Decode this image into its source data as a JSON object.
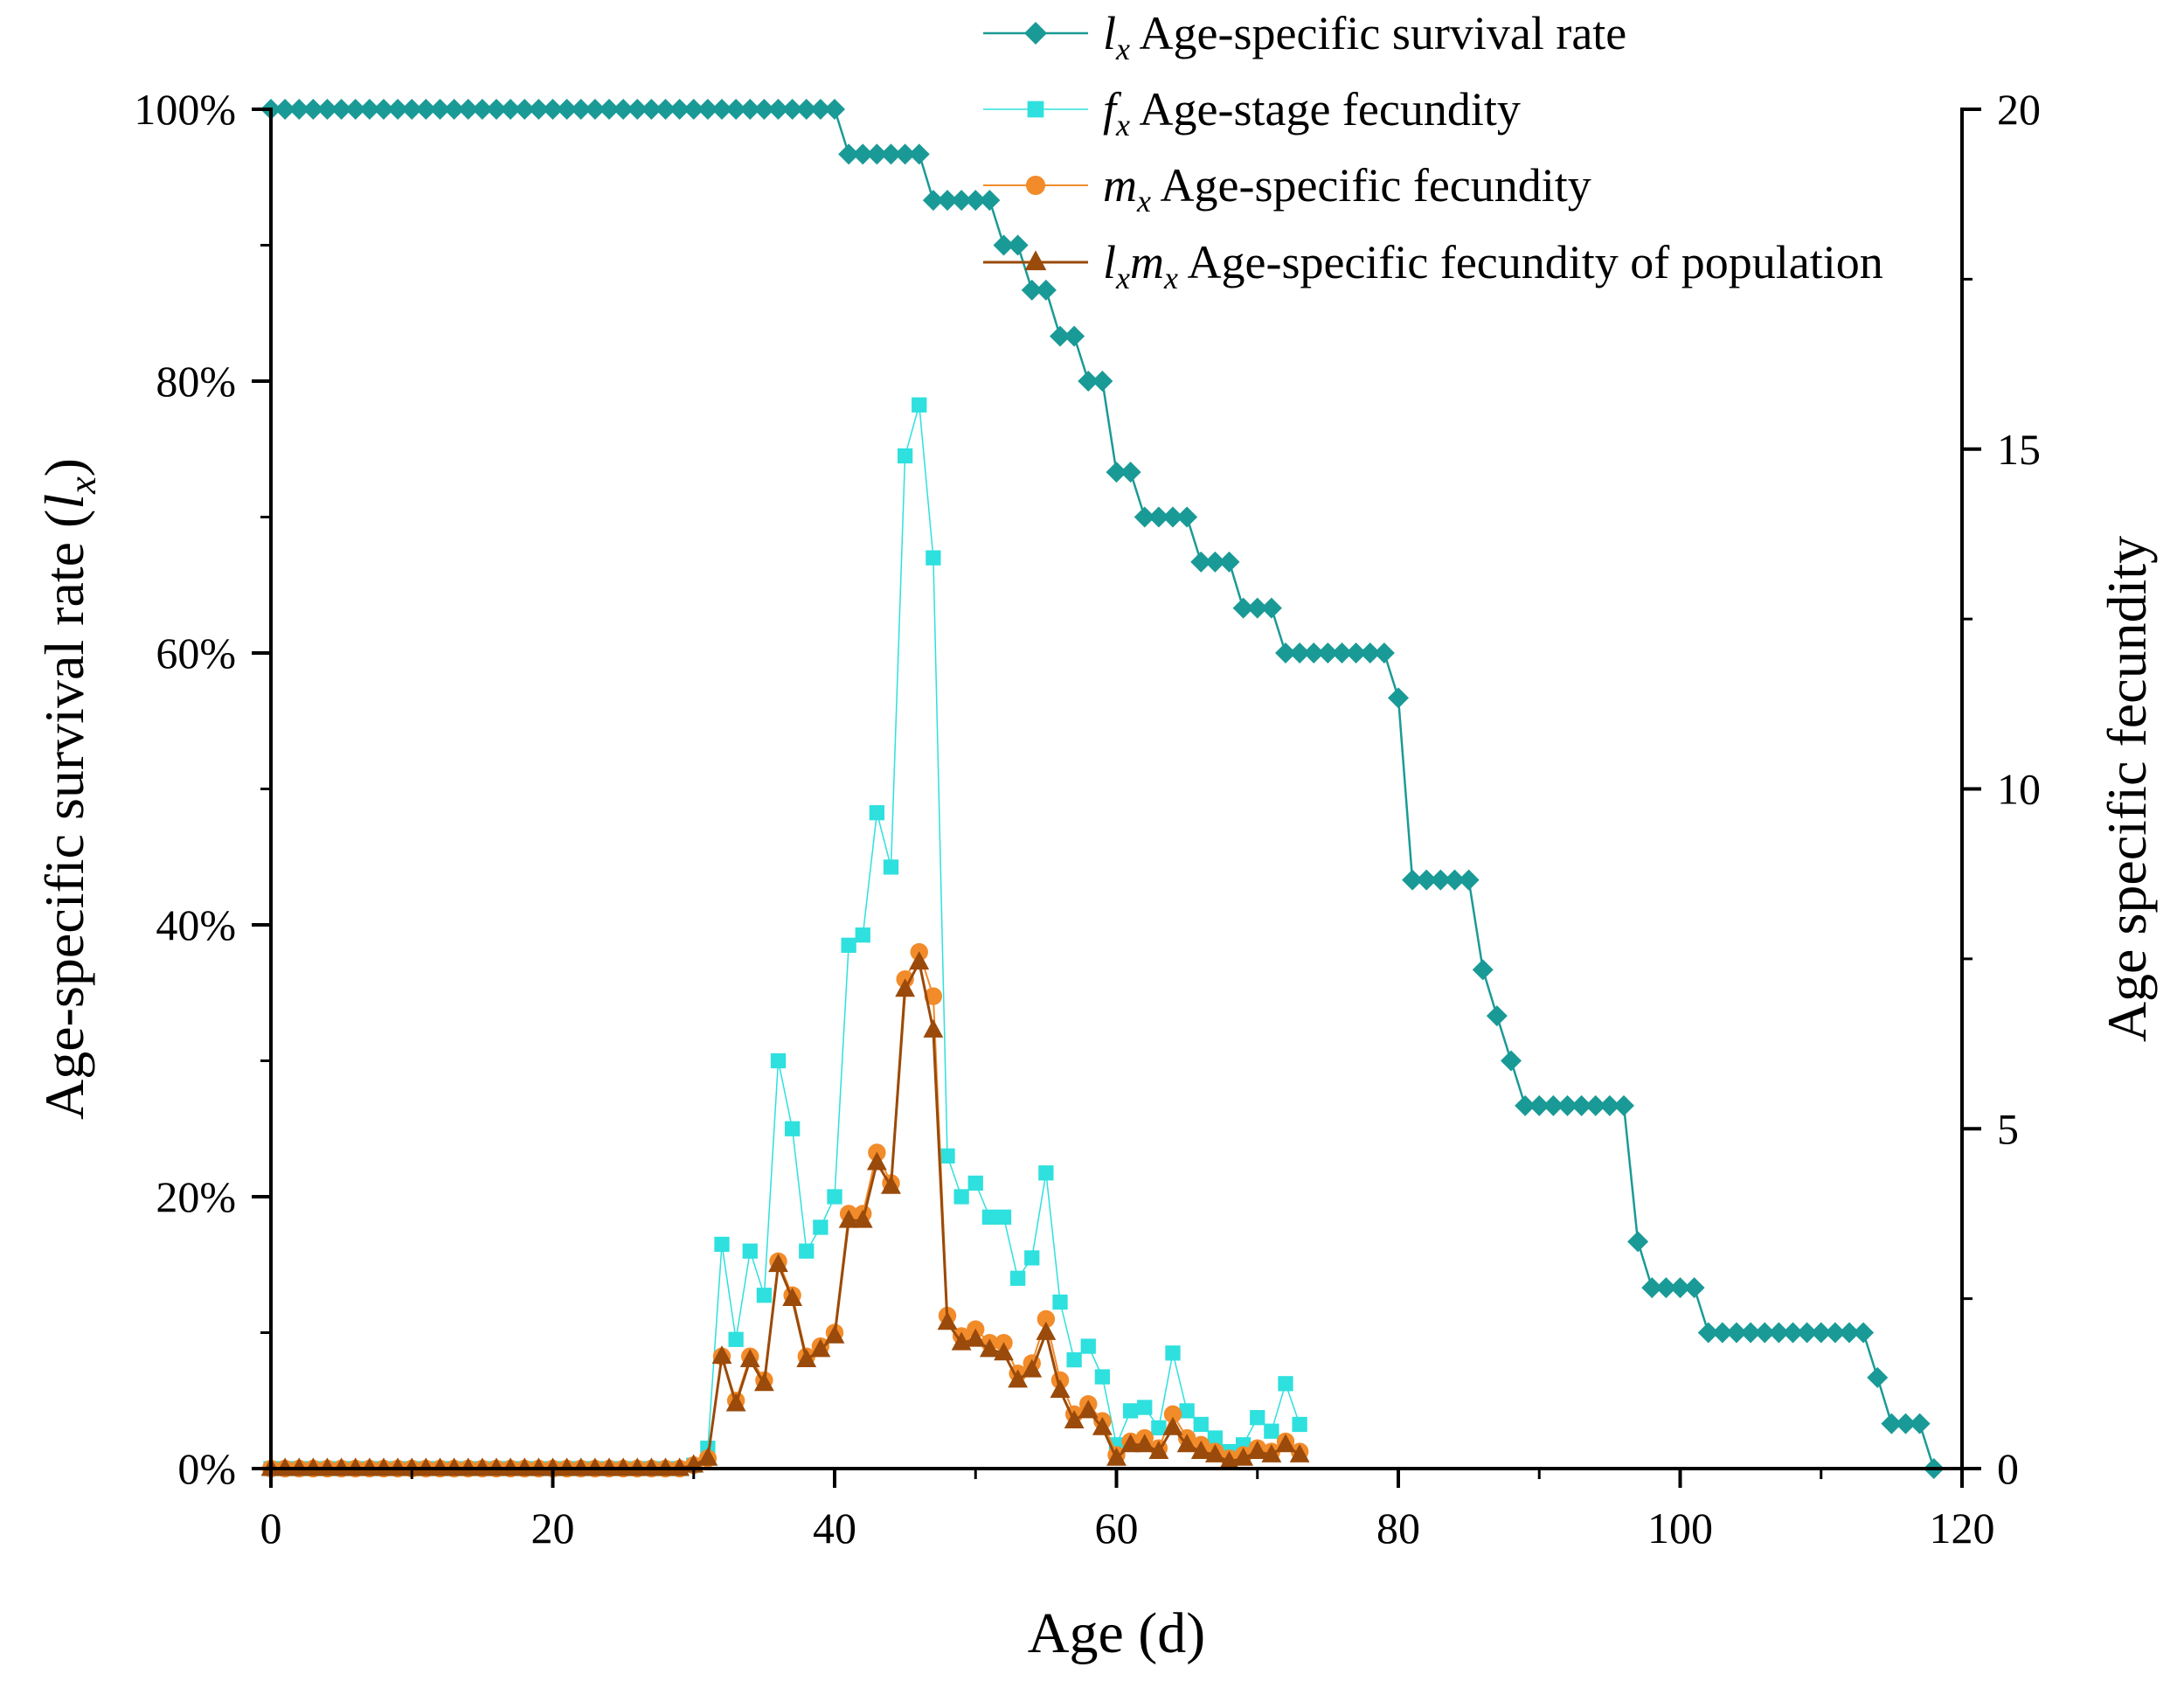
{
  "chart_data": {
    "type": "line",
    "xlabel": "Age (d)",
    "ylabel_left": {
      "prefix": "Age-specific survival rate (",
      "symbol": "l",
      "sub": "x",
      "suffix": ")"
    },
    "ylabel_right": "Age specific fecundity",
    "xlim": [
      0,
      120
    ],
    "ylim_left": [
      0,
      100
    ],
    "ylim_right": [
      0,
      20
    ],
    "x_ticks": [
      "0",
      "20",
      "40",
      "60",
      "80",
      "100",
      "120"
    ],
    "y_left_ticks": [
      "0%",
      "20%",
      "40%",
      "60%",
      "80%",
      "100%"
    ],
    "y_right_ticks": [
      "0",
      "5",
      "10",
      "15",
      "20"
    ],
    "legend_position": "top-right",
    "series": [
      {
        "key": "lx",
        "axis": "left",
        "symbol": "l",
        "sub": "x",
        "name": "Age-specific survival rate",
        "marker": "diamond",
        "color": "#1a9a96",
        "values": [
          100,
          100,
          100,
          100,
          100,
          100,
          100,
          100,
          100,
          100,
          100,
          100,
          100,
          100,
          100,
          100,
          100,
          100,
          100,
          100,
          100,
          100,
          100,
          100,
          100,
          100,
          100,
          100,
          100,
          100,
          100,
          100,
          100,
          100,
          100,
          100,
          100,
          100,
          100,
          100,
          100,
          96.7,
          96.7,
          96.7,
          96.7,
          96.7,
          96.7,
          93.3,
          93.3,
          93.3,
          93.3,
          93.3,
          90,
          90,
          86.7,
          86.7,
          83.3,
          83.3,
          80,
          80,
          73.3,
          73.3,
          70,
          70,
          70,
          70,
          66.7,
          66.7,
          66.7,
          63.3,
          63.3,
          63.3,
          60,
          60,
          60,
          60,
          60,
          60,
          60,
          60,
          56.7,
          43.3,
          43.3,
          43.3,
          43.3,
          43.3,
          36.7,
          33.3,
          30,
          26.7,
          26.7,
          26.7,
          26.7,
          26.7,
          26.7,
          26.7,
          26.7,
          16.7,
          13.3,
          13.3,
          13.3,
          13.3,
          10,
          10,
          10,
          10,
          10,
          10,
          10,
          10,
          10,
          10,
          10,
          10,
          6.7,
          3.3,
          3.3,
          3.3,
          0
        ]
      },
      {
        "key": "fx",
        "axis": "right",
        "symbol": "f",
        "sub": "x",
        "name": "Age-stage fecundity",
        "marker": "square",
        "color": "#2ee0de",
        "values": [
          0,
          0,
          0,
          0,
          0,
          0,
          0,
          0,
          0,
          0,
          0,
          0,
          0,
          0,
          0,
          0,
          0,
          0,
          0,
          0,
          0,
          0,
          0,
          0,
          0,
          0,
          0,
          0,
          0,
          0,
          0.05,
          0.3,
          3.3,
          1.9,
          3.2,
          2.55,
          6,
          5,
          3.2,
          3.55,
          4,
          7.7,
          7.85,
          9.65,
          8.85,
          14.9,
          15.65,
          13.4,
          4.6,
          4,
          4.2,
          3.7,
          3.7,
          2.8,
          3.1,
          4.35,
          2.45,
          1.6,
          1.8,
          1.35,
          0.35,
          0.85,
          0.9,
          0.6,
          1.7,
          0.85,
          0.65,
          0.45,
          0.25,
          0.35,
          0.75,
          0.55,
          1.25,
          0.65
        ]
      },
      {
        "key": "mx",
        "axis": "right",
        "symbol": "m",
        "sub": "x",
        "name": "Age-specific fecundity",
        "marker": "circle",
        "color": "#f28b2a",
        "values": [
          0,
          0,
          0,
          0,
          0,
          0,
          0,
          0,
          0,
          0,
          0,
          0,
          0,
          0,
          0,
          0,
          0,
          0,
          0,
          0,
          0,
          0,
          0,
          0,
          0,
          0,
          0,
          0,
          0,
          0,
          0.05,
          0.15,
          1.65,
          1,
          1.65,
          1.3,
          3.05,
          2.55,
          1.65,
          1.8,
          2,
          3.75,
          3.75,
          4.65,
          4.2,
          7.2,
          7.6,
          6.95,
          2.25,
          1.95,
          2.05,
          1.85,
          1.85,
          1.4,
          1.55,
          2.2,
          1.3,
          0.8,
          0.95,
          0.7,
          0.2,
          0.4,
          0.45,
          0.3,
          0.8,
          0.45,
          0.35,
          0.25,
          0.15,
          0.2,
          0.3,
          0.25,
          0.4,
          0.25
        ]
      },
      {
        "key": "lxmx",
        "axis": "right",
        "symbol": "l",
        "sub": "x",
        "symbol2": "m",
        "sub2": "x",
        "name": "Age-specific fecundity of population",
        "marker": "triangle",
        "color": "#9a4a0a",
        "values": [
          0,
          0,
          0,
          0,
          0,
          0,
          0,
          0,
          0,
          0,
          0,
          0,
          0,
          0,
          0,
          0,
          0,
          0,
          0,
          0,
          0,
          0,
          0,
          0,
          0,
          0,
          0,
          0,
          0,
          0,
          0.05,
          0.15,
          1.65,
          0.95,
          1.6,
          1.25,
          3,
          2.5,
          1.6,
          1.75,
          1.95,
          3.65,
          3.65,
          4.5,
          4.15,
          7.05,
          7.45,
          6.45,
          2.15,
          1.85,
          1.9,
          1.75,
          1.7,
          1.3,
          1.45,
          2,
          1.15,
          0.7,
          0.85,
          0.6,
          0.15,
          0.35,
          0.35,
          0.25,
          0.6,
          0.35,
          0.25,
          0.2,
          0.1,
          0.15,
          0.25,
          0.2,
          0.35,
          0.2
        ]
      }
    ]
  }
}
